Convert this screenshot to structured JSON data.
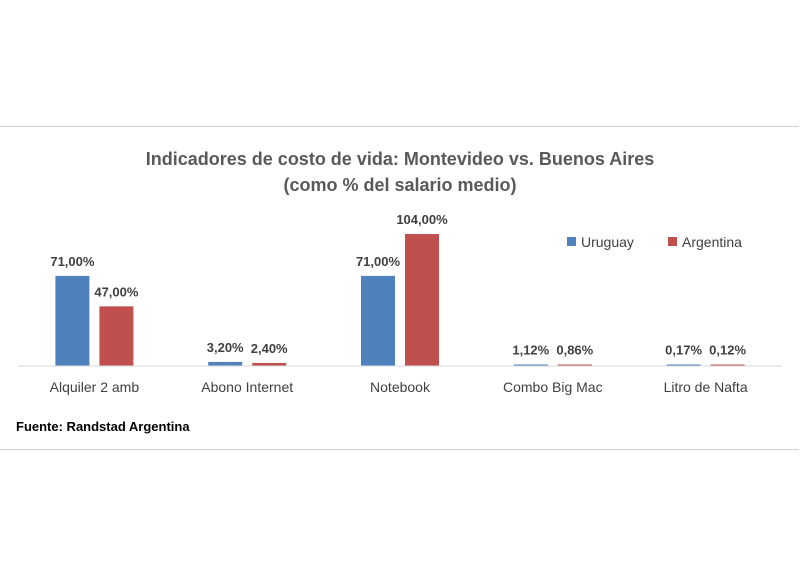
{
  "chart_data": {
    "type": "bar",
    "title": "Indicadores de costo de vida: Montevideo vs. Buenos Aires",
    "subtitle": "(como % del salario medio)",
    "categories": [
      "Alquiler 2 amb",
      "Abono Internet",
      "Notebook",
      "Combo Big Mac",
      "Litro de Nafta"
    ],
    "series": [
      {
        "name": "Uruguay",
        "color": "#4f81bd",
        "values": [
          71.0,
          3.2,
          71.0,
          1.12,
          0.17
        ],
        "labels": [
          "71,00%",
          "3,20%",
          "71,00%",
          "1,12%",
          "0,17%"
        ]
      },
      {
        "name": "Argentina",
        "color": "#c0504d",
        "values": [
          47.0,
          2.4,
          104.0,
          0.86,
          0.12
        ],
        "labels": [
          "47,00%",
          "2,40%",
          "104,00%",
          "0,86%",
          "0,12%"
        ]
      }
    ],
    "ylim": [
      0,
      104
    ],
    "grid": false,
    "legend_position": "top-right",
    "source": "Fuente: Randstad Argentina"
  }
}
